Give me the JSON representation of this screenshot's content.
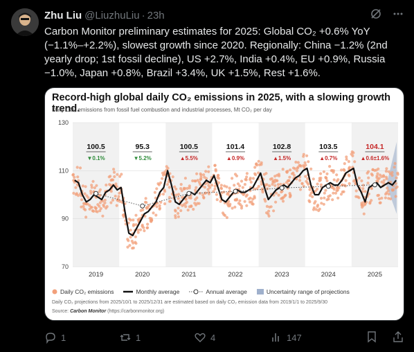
{
  "tweet": {
    "author_name": "Zhu Liu",
    "handle": "@LiuzhuLiu",
    "time": "23h",
    "text": "Carbon Monitor preliminary estimates for 2025: Global CO₂ +0.6% YoY\n(−1.1%–+2.2%), slowest growth since 2020. Regionally: China −1.2% (2nd\nyearly drop; 1st fossil decline), US +2.7%, India +0.4%, EU +0.9%, Russia\n−1.0%, Japan +0.8%, Brazil +3.4%, UK +1.5%, Rest +1.6%."
  },
  "card": {
    "title": "Record-high global daily CO₂ emissions in 2025, with a slowing growth trend.",
    "subtitle": "Daily CO₂ emissions from fossil fuel combustion and industrial processes, Mt CO₂ per day",
    "legend": {
      "daily": "Daily CO₂ emissions",
      "monthly": "Monthly average",
      "annual": "Annual average",
      "uncertainty": "Uncertainty range of projections"
    },
    "note": "Daily CO₂ projections from 2025/10/1 to 2025/12/31 are estimated based on daily CO₂ emission data from 2019/1/1 to 2025/9/30",
    "source_label": "Source:",
    "source_name": "Carbon Monitor",
    "source_url": "(https://carbonmonitor.org)"
  },
  "chart_data": {
    "type": "line",
    "ylim": [
      70,
      130
    ],
    "yticks": [
      "130",
      "110",
      "90",
      "70"
    ],
    "categories": [
      "2019",
      "2020",
      "2021",
      "2022",
      "2023",
      "2024",
      "2025"
    ],
    "annual_average": [
      100.5,
      95.3,
      100.5,
      101.4,
      102.8,
      103.5,
      104.1
    ],
    "annual_labels": [
      "100.5",
      "95.3",
      "100.5",
      "101.4",
      "102.8",
      "103.5",
      "104.1"
    ],
    "growth_labels": [
      "▼0.1%",
      "▼5.2%",
      "▲5.5%",
      "▲0.9%",
      "▲1.5%",
      "▲0.7%",
      "▲0.6±1.6%"
    ],
    "growth_colors": [
      "#2e8b3a",
      "#2e8b3a",
      "#c62828",
      "#c62828",
      "#c62828",
      "#c62828",
      "#c62828"
    ],
    "monthly_average": [
      106,
      105,
      100,
      97,
      98,
      100,
      99,
      98,
      101,
      102,
      104,
      102,
      103,
      93,
      84,
      83,
      86,
      89,
      92,
      93,
      95,
      97,
      101,
      103,
      110,
      104,
      97,
      96,
      98,
      100,
      101,
      100,
      102,
      104,
      106,
      105,
      108,
      103,
      98,
      97,
      99,
      101,
      102,
      101,
      101,
      102,
      103,
      106,
      109,
      103,
      98,
      100,
      102,
      103,
      104,
      103,
      105,
      107,
      108,
      110,
      111,
      104,
      100,
      100,
      103,
      104,
      105,
      104,
      104,
      106,
      109,
      110,
      111,
      104,
      101,
      97,
      103,
      104,
      105,
      103,
      104,
      105,
      104,
      106
    ],
    "colors": {
      "daily": "#f2a07b",
      "monthly": "#111111",
      "annual": "#555555",
      "uncertainty": "#9fb0cc"
    }
  },
  "actions": {
    "replies": "1",
    "reposts": "1",
    "likes": "4",
    "views": "147"
  }
}
